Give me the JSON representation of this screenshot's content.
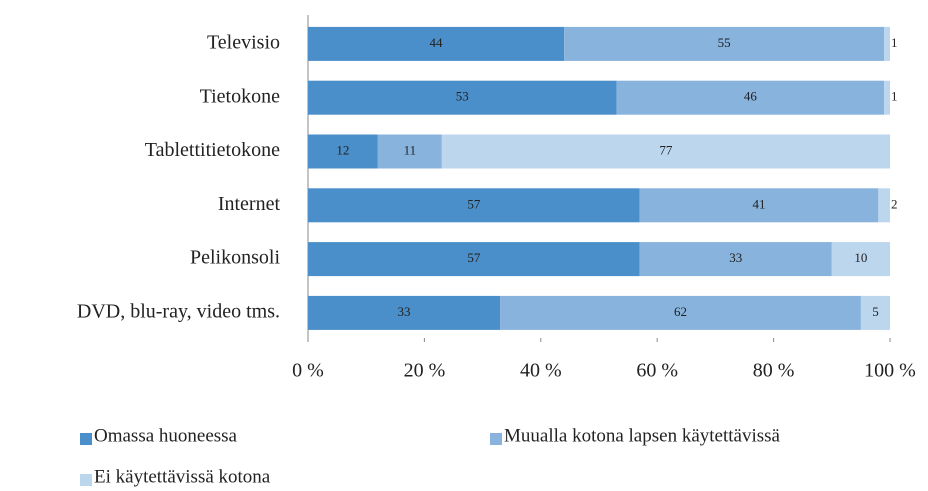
{
  "chart_data": {
    "type": "stacked_bar_horizontal",
    "categories": [
      "Televisio",
      "Tietokone",
      "Tablettitietokone",
      "Internet",
      "Pelikonsoli",
      "DVD, blu-ray, video tms."
    ],
    "series": [
      {
        "name": "Omassa huoneessa",
        "color": "#4a8fc9",
        "values": [
          44,
          53,
          12,
          57,
          57,
          33
        ]
      },
      {
        "name": "Muualla kotona lapsen käytettävissä",
        "color": "#88b3dd",
        "values": [
          55,
          46,
          11,
          41,
          33,
          62
        ]
      },
      {
        "name": "Ei käytettävissä kotona",
        "color": "#bcd6ee",
        "values": [
          1,
          1,
          77,
          2,
          10,
          5
        ]
      }
    ],
    "xlim": [
      0,
      100
    ],
    "xticks": [
      {
        "value": 0,
        "label": "0 %"
      },
      {
        "value": 20,
        "label": "20 %"
      },
      {
        "value": 40,
        "label": "40 %"
      },
      {
        "value": 60,
        "label": "60 %"
      },
      {
        "value": 80,
        "label": "80 %"
      },
      {
        "value": 100,
        "label": "100 %"
      }
    ]
  }
}
